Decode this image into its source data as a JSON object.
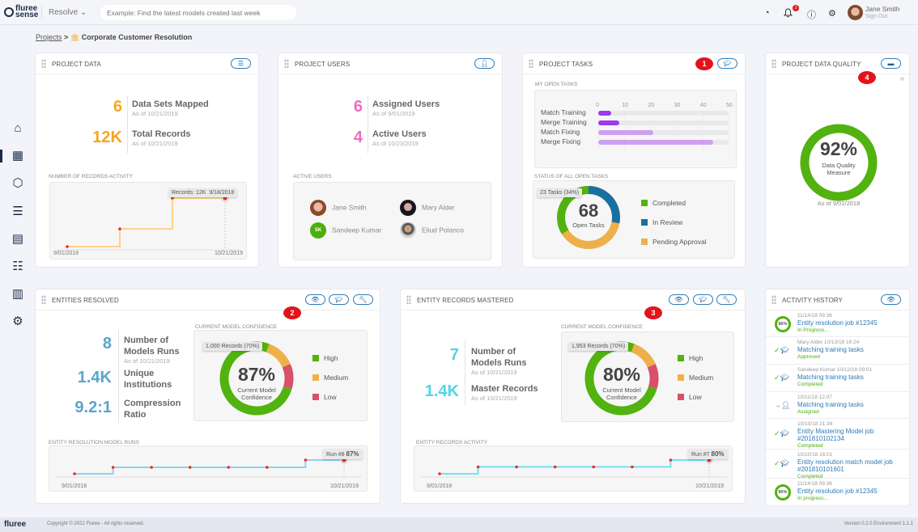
{
  "header": {
    "logo_text": "fluree sense",
    "app_switch": "Resolve ⌄",
    "search_placeholder": "Example: Find the latest models created last week",
    "notification_count": "3",
    "user_name": "Jane Smith",
    "sign_out": "Sign Out",
    "icons": [
      "reports-icon",
      "bell-icon",
      "help-icon",
      "gear-icon"
    ]
  },
  "breadcrumb": {
    "root": "Projects",
    "separator": ">",
    "current": "Corporate Customer Resolution"
  },
  "sidebar": {
    "items": [
      "home",
      "dashboard",
      "models",
      "data",
      "reports",
      "tasks",
      "entities",
      "settings"
    ],
    "active": "dashboard"
  },
  "project_data": {
    "title": "Project Data",
    "stats": [
      {
        "value": "6",
        "label": "Data Sets Mapped",
        "as_of": "As of 10/21/2019"
      },
      {
        "value": "12K",
        "label": "Total Records",
        "as_of": "As of 10/21/2019"
      }
    ],
    "chart_title": "Number of Records Activity",
    "tooltip_label": "Records: 12K",
    "tooltip_date": "9/18/2018",
    "x_start": "9/01/2018",
    "x_end": "10/21/2019",
    "accent": "#f8a61c"
  },
  "project_users": {
    "title": "Project Users",
    "stats": [
      {
        "value": "6",
        "label": "Assigned Users",
        "as_of": "As of 9/01/2019"
      },
      {
        "value": "4",
        "label": "Active Users",
        "as_of": "As of 10/23/2019"
      }
    ],
    "active_users_title": "Active Users",
    "users": [
      {
        "name": "Jane Smith",
        "initials": ""
      },
      {
        "name": "Mary Alder",
        "initials": ""
      },
      {
        "name": "Sandeep Kumar",
        "initials": "SK"
      },
      {
        "name": "Eliud Polanco",
        "initials": ""
      }
    ],
    "accent": "#f06bc2"
  },
  "project_tasks": {
    "title": "Project Tasks",
    "badge": "1",
    "my_open_tasks_title": "My Open Tasks",
    "status_title": "Status of All Open Tasks",
    "total": "68",
    "total_label": "Open Tasks",
    "tooltip": "23 Tasks (34%)"
  },
  "data_quality": {
    "title": "Project Data Quality",
    "badge": "4",
    "value_text": "92%",
    "value": 92,
    "label": "Data Quality Measure",
    "as_of": "As of 9/01/2018"
  },
  "entities_resolved": {
    "title": "Entities Resolved",
    "badge": "2",
    "stats": [
      {
        "value": "8",
        "label": "Number of Models Runs",
        "as_of": "As of 10/21/2019"
      },
      {
        "value": "1.4K",
        "label": "Unique Institutions"
      },
      {
        "value": "9.2:1",
        "label": "Compression Ratio"
      }
    ],
    "confidence_title": "Current Model Confidence",
    "confidence_value": "87%",
    "confidence_label": "Current Model Confidence",
    "tooltip": "1,000 Records (70%)",
    "runs_title": "Entity Resolution Model Runs",
    "run_tip_label": "Run #8",
    "run_tip_value": "87%",
    "x_start": "9/01/2018",
    "x_end": "10/21/2019",
    "accent": "#5ba4cf"
  },
  "entity_records_mastered": {
    "title": "Entity Records Mastered",
    "badge": "3",
    "stats": [
      {
        "value": "7",
        "label": "Number of Models Runs",
        "as_of": "As of 10/21/2019"
      },
      {
        "value": "1.4K",
        "label": "Master Records",
        "as_of": "As of 10/21/2019"
      }
    ],
    "confidence_title": "Current Model Confidence",
    "confidence_value": "80%",
    "confidence_label": "Current Model Confidence",
    "tooltip": "1,953 Records (70%)",
    "runs_title": "Entity Records Activity",
    "run_tip_label": "Run #7",
    "run_tip_value": "80%",
    "x_start": "9/01/2018",
    "x_end": "10/21/2019",
    "accent": "#4fd6e4"
  },
  "confidence_legend": [
    "High",
    "Medium",
    "Low"
  ],
  "activity_history": {
    "title": "Activity History",
    "items": [
      {
        "type": "progress",
        "progress": "80%",
        "meta": "11/14/18    09:36",
        "title": "Entity resolution job #12345",
        "status": "In Progress..."
      },
      {
        "type": "approved",
        "meta": "Mary Alder   10/13/18   16:24",
        "title": "Matching training tasks",
        "status": "Approved"
      },
      {
        "type": "approved",
        "meta": "Sandeep Kumar   10/12/18   09:01",
        "title": "Matching training tasks",
        "status": "Completed"
      },
      {
        "type": "assigned",
        "meta": "10/11/18 12:07",
        "title": "Matching training tasks",
        "status": "Assigned"
      },
      {
        "type": "approved",
        "meta": "10/10/18          21:34",
        "title": "Entity Mastering Model job #201810102134",
        "status": "Completed"
      },
      {
        "type": "approved",
        "meta": "10/10/18    16:01",
        "title": "Entity resolution match model job #201810101601",
        "status": "Completed"
      },
      {
        "type": "progress",
        "progress": "80%",
        "meta": "11/14/18  09:36",
        "title": "Entity resolution job #12345",
        "status": "In progress..."
      }
    ]
  },
  "footer": {
    "logo": "fluree",
    "copyright": "Copyright © 2022 Fluree - All rights reserved.",
    "version": "Version 0.2.0   Environment 1.1.1"
  },
  "colors": {
    "green": "#52b20f",
    "blue": "#1b6fa0",
    "orange": "#eeb04a",
    "red": "#d9506a",
    "badge": "#e3131b",
    "purple": "#9b3af0",
    "light_purple": "#cf9ff0"
  },
  "chart_data": [
    {
      "type": "bar",
      "orientation": "horizontal",
      "title": "My Open Tasks",
      "categories": [
        "Match Training",
        "Merge Training",
        "Match Fixing",
        "Merge Fixing"
      ],
      "values": [
        5,
        8,
        21,
        44
      ],
      "xlim": [
        0,
        50
      ],
      "ticks": [
        0,
        10,
        20,
        30,
        40,
        50
      ]
    },
    {
      "type": "pie",
      "title": "Status of All Open Tasks",
      "categories": [
        "Completed",
        "In Review",
        "Pending Approval"
      ],
      "values": [
        34,
        28,
        38
      ]
    },
    {
      "type": "pie",
      "title": "Current Model Confidence",
      "categories": [
        "High",
        "Medium",
        "Low"
      ],
      "values": [
        76,
        13,
        11
      ]
    },
    {
      "type": "pie",
      "title": "Current Model Confidence",
      "categories": [
        "High",
        "Medium",
        "Low"
      ],
      "values": [
        76,
        13,
        11
      ]
    },
    {
      "type": "line",
      "title": "Number of Records Activity",
      "values": [
        1,
        5,
        12,
        12
      ]
    },
    {
      "type": "line",
      "title": "Entity Resolution Model Runs",
      "values": [
        70,
        78,
        78,
        78,
        78,
        78,
        87,
        87
      ]
    },
    {
      "type": "line",
      "title": "Entity Records Activity",
      "values": [
        60,
        70,
        70,
        70,
        70,
        70,
        80,
        80
      ]
    }
  ]
}
